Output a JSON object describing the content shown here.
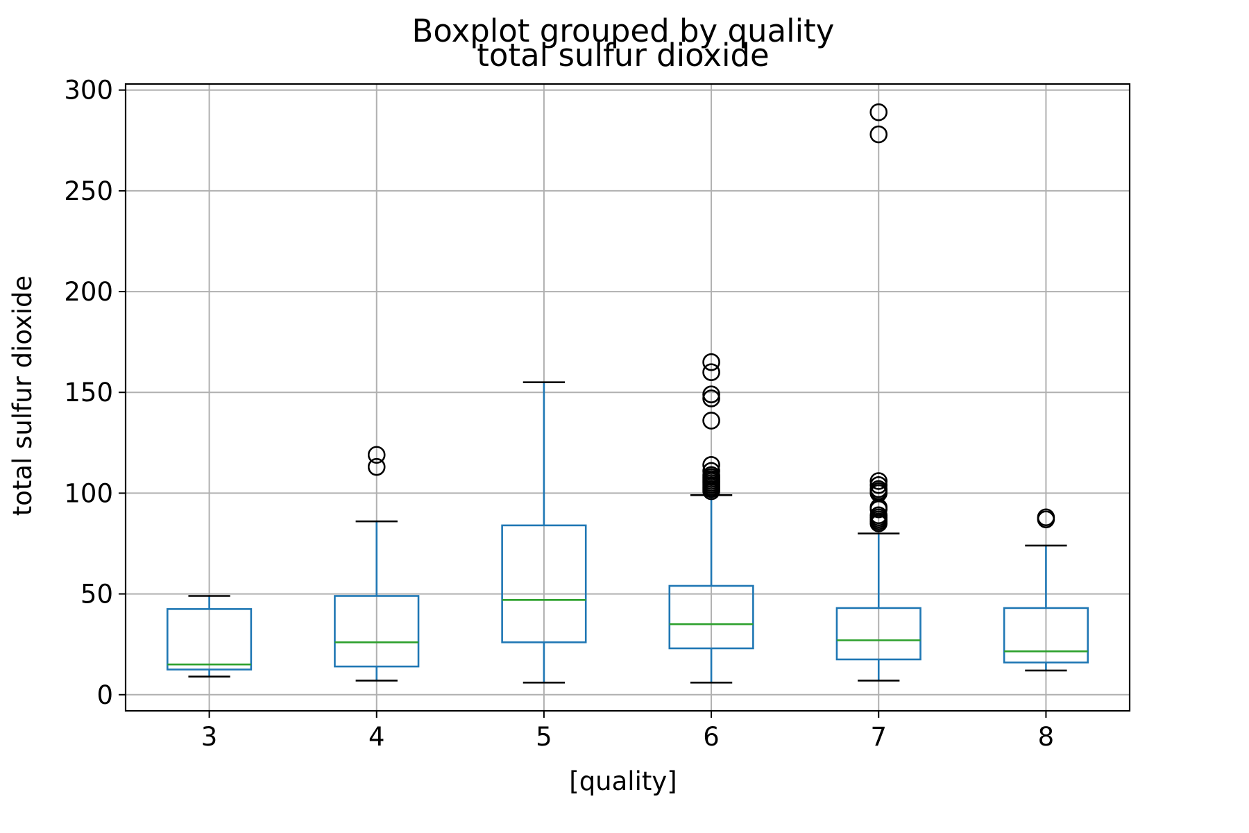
{
  "chart_data": {
    "type": "boxplot",
    "suptitle": "Boxplot grouped by quality",
    "title": "total sulfur dioxide",
    "xlabel": "[quality]",
    "ylabel": "total sulfur dioxide",
    "ylim": [
      -8,
      303
    ],
    "yticks": [
      0,
      50,
      100,
      150,
      200,
      250,
      300
    ],
    "grid": true,
    "colors": {
      "box": "#1f77b4",
      "median": "#2ca02c",
      "whisker": "#1f77b4",
      "cap": "#000000",
      "flier": "#000000",
      "grid": "#b0b0b0",
      "frame": "#000000"
    },
    "categories": [
      "3",
      "4",
      "5",
      "6",
      "7",
      "8"
    ],
    "boxes": [
      {
        "category": "3",
        "whislo": 9,
        "q1": 12.5,
        "med": 15,
        "q3": 42.5,
        "whishi": 49,
        "fliers": []
      },
      {
        "category": "4",
        "whislo": 7,
        "q1": 14,
        "med": 26,
        "q3": 49,
        "whishi": 86,
        "fliers": [
          113,
          119
        ]
      },
      {
        "category": "5",
        "whislo": 6,
        "q1": 26,
        "med": 47,
        "q3": 84,
        "whishi": 155,
        "fliers": []
      },
      {
        "category": "6",
        "whislo": 6,
        "q1": 23,
        "med": 35,
        "q3": 54,
        "whishi": 99,
        "fliers": [
          101,
          102,
          103,
          104,
          105,
          106,
          107,
          108,
          109,
          111,
          114,
          136,
          147,
          149,
          160,
          165
        ]
      },
      {
        "category": "7",
        "whislo": 7,
        "q1": 17.5,
        "med": 27,
        "q3": 43,
        "whishi": 80,
        "fliers": [
          85,
          86,
          87,
          88,
          89,
          92,
          93,
          100,
          101,
          102,
          104,
          106,
          278,
          289
        ]
      },
      {
        "category": "8",
        "whislo": 12,
        "q1": 16,
        "med": 21.5,
        "q3": 43,
        "whishi": 74,
        "fliers": [
          87,
          88
        ]
      }
    ]
  }
}
